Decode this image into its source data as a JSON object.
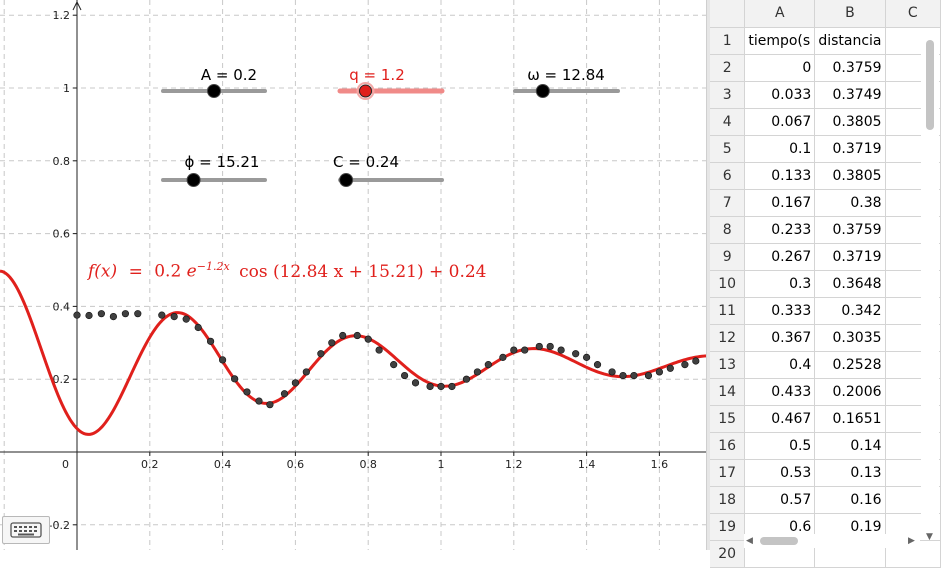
{
  "graphics": {
    "x_axis": {
      "min": -0.2,
      "max": 1.75,
      "ticks": [
        "0.2",
        "0.4",
        "0.6",
        "0.8",
        "1",
        "1.2",
        "1.4",
        "1.6"
      ],
      "tick_values": [
        0.2,
        0.4,
        0.6,
        0.8,
        1,
        1.2,
        1.4,
        1.6
      ],
      "origin_label": "0"
    },
    "y_axis": {
      "min": -0.25,
      "max": 1.25,
      "ticks": [
        "1.2",
        "1",
        "0.8",
        "0.6",
        "0.4",
        "0.2",
        "-0.2"
      ],
      "tick_values": [
        1.2,
        1,
        0.8,
        0.6,
        0.4,
        0.2,
        -0.2
      ]
    },
    "grid": true,
    "curve_color": "#e0201c",
    "point_color": "#404040",
    "sliders": [
      {
        "id": "A",
        "label": "A = 0.2",
        "fraction": 0.5,
        "highlighted": false
      },
      {
        "id": "q",
        "label": "q = 1.2",
        "fraction": 0.25,
        "highlighted": true
      },
      {
        "id": "omega",
        "label": "ω = 12.84",
        "fraction": 0.27,
        "highlighted": false
      },
      {
        "id": "phi",
        "label": "ϕ = 15.21",
        "fraction": 0.3,
        "highlighted": false
      },
      {
        "id": "C",
        "label": "C = 0.24",
        "fraction": 0.06,
        "highlighted": false
      }
    ],
    "formula": {
      "lhs": "f(x)",
      "eq": "=",
      "coef": "0.2",
      "e": "e",
      "exp": "−1.2x",
      "cos": "cos (12.84 x + 15.21) + 0.24"
    },
    "keyboard_icon": "keyboard-icon"
  },
  "chart_data": {
    "type": "scatter",
    "title": "",
    "xlabel": "",
    "ylabel": "",
    "xlim": [
      -0.2,
      1.75
    ],
    "ylim": [
      -0.25,
      1.25
    ],
    "function": {
      "A": 0.2,
      "q": 1.2,
      "omega": 12.84,
      "phi": 15.21,
      "C": 0.24
    },
    "points": [
      [
        0,
        0.376
      ],
      [
        0.033,
        0.375
      ],
      [
        0.067,
        0.38
      ],
      [
        0.1,
        0.372
      ],
      [
        0.133,
        0.38
      ],
      [
        0.167,
        0.38
      ],
      [
        0.233,
        0.376
      ],
      [
        0.267,
        0.372
      ],
      [
        0.3,
        0.365
      ],
      [
        0.333,
        0.342
      ],
      [
        0.367,
        0.304
      ],
      [
        0.4,
        0.253
      ],
      [
        0.433,
        0.201
      ],
      [
        0.467,
        0.165
      ],
      [
        0.5,
        0.14
      ],
      [
        0.53,
        0.13
      ],
      [
        0.57,
        0.16
      ],
      [
        0.6,
        0.19
      ],
      [
        0.63,
        0.22
      ],
      [
        0.67,
        0.27
      ],
      [
        0.7,
        0.3
      ],
      [
        0.73,
        0.32
      ],
      [
        0.77,
        0.32
      ],
      [
        0.8,
        0.31
      ],
      [
        0.83,
        0.28
      ],
      [
        0.87,
        0.24
      ],
      [
        0.9,
        0.21
      ],
      [
        0.93,
        0.19
      ],
      [
        0.97,
        0.18
      ],
      [
        1.0,
        0.18
      ],
      [
        1.03,
        0.18
      ],
      [
        1.07,
        0.2
      ],
      [
        1.1,
        0.22
      ],
      [
        1.13,
        0.24
      ],
      [
        1.17,
        0.26
      ],
      [
        1.2,
        0.28
      ],
      [
        1.23,
        0.28
      ],
      [
        1.27,
        0.29
      ],
      [
        1.3,
        0.29
      ],
      [
        1.33,
        0.28
      ],
      [
        1.37,
        0.27
      ],
      [
        1.4,
        0.26
      ],
      [
        1.43,
        0.24
      ],
      [
        1.47,
        0.22
      ],
      [
        1.5,
        0.21
      ],
      [
        1.53,
        0.21
      ],
      [
        1.57,
        0.21
      ],
      [
        1.6,
        0.22
      ],
      [
        1.63,
        0.23
      ],
      [
        1.67,
        0.24
      ],
      [
        1.7,
        0.25
      ]
    ]
  },
  "spreadsheet": {
    "columns": [
      "A",
      "B",
      "C"
    ],
    "rows": [
      {
        "n": "1",
        "a": "tiempo(s",
        "b": "distancia"
      },
      {
        "n": "2",
        "a": "0",
        "b": "0.3759"
      },
      {
        "n": "3",
        "a": "0.033",
        "b": "0.3749"
      },
      {
        "n": "4",
        "a": "0.067",
        "b": "0.3805"
      },
      {
        "n": "5",
        "a": "0.1",
        "b": "0.3719"
      },
      {
        "n": "6",
        "a": "0.133",
        "b": "0.3805"
      },
      {
        "n": "7",
        "a": "0.167",
        "b": "0.38"
      },
      {
        "n": "8",
        "a": "0.233",
        "b": "0.3759"
      },
      {
        "n": "9",
        "a": "0.267",
        "b": "0.3719"
      },
      {
        "n": "10",
        "a": "0.3",
        "b": "0.3648"
      },
      {
        "n": "11",
        "a": "0.333",
        "b": "0.342"
      },
      {
        "n": "12",
        "a": "0.367",
        "b": "0.3035"
      },
      {
        "n": "13",
        "a": "0.4",
        "b": "0.2528"
      },
      {
        "n": "14",
        "a": "0.433",
        "b": "0.2006"
      },
      {
        "n": "15",
        "a": "0.467",
        "b": "0.1651"
      },
      {
        "n": "16",
        "a": "0.5",
        "b": "0.14"
      },
      {
        "n": "17",
        "a": "0.53",
        "b": "0.13"
      },
      {
        "n": "18",
        "a": "0.57",
        "b": "0.16"
      },
      {
        "n": "19",
        "a": "0.6",
        "b": "0.19"
      },
      {
        "n": "20",
        "a": "",
        "b": ""
      }
    ]
  }
}
